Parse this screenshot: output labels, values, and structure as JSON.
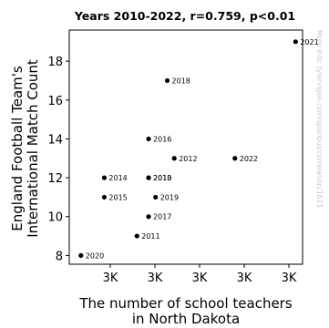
{
  "chart_data": {
    "type": "scatter",
    "title": "Years 2010-2022, r=0.759, p<0.01",
    "xlabel_lines": [
      "The number of school teachers",
      "in North Dakota"
    ],
    "ylabel_lines": [
      "England Football Team's",
      "International Match Count"
    ],
    "yticks": [
      8,
      10,
      12,
      14,
      16,
      18
    ],
    "ylim": [
      7.55,
      19.6
    ],
    "xticks": [
      "3K",
      "3K",
      "3K",
      "3K",
      "3K"
    ],
    "grid": false,
    "legend": "none",
    "marker_color": "#000000",
    "watermark": "More info: tylervigen.com/spurious/correlation/1623",
    "points": [
      {
        "label": "2010",
        "x": 0.34,
        "y": 12
      },
      {
        "label": "2011",
        "x": 0.29,
        "y": 9
      },
      {
        "label": "2012",
        "x": 0.45,
        "y": 13
      },
      {
        "label": "2013",
        "x": 0.34,
        "y": 12
      },
      {
        "label": "2014",
        "x": 0.15,
        "y": 12
      },
      {
        "label": "2015",
        "x": 0.15,
        "y": 11
      },
      {
        "label": "2016",
        "x": 0.34,
        "y": 14
      },
      {
        "label": "2017",
        "x": 0.34,
        "y": 10
      },
      {
        "label": "2018",
        "x": 0.42,
        "y": 17
      },
      {
        "label": "2019",
        "x": 0.37,
        "y": 11
      },
      {
        "label": "2020",
        "x": 0.05,
        "y": 8
      },
      {
        "label": "2021",
        "x": 0.97,
        "y": 19
      },
      {
        "label": "2022",
        "x": 0.71,
        "y": 13
      }
    ]
  }
}
